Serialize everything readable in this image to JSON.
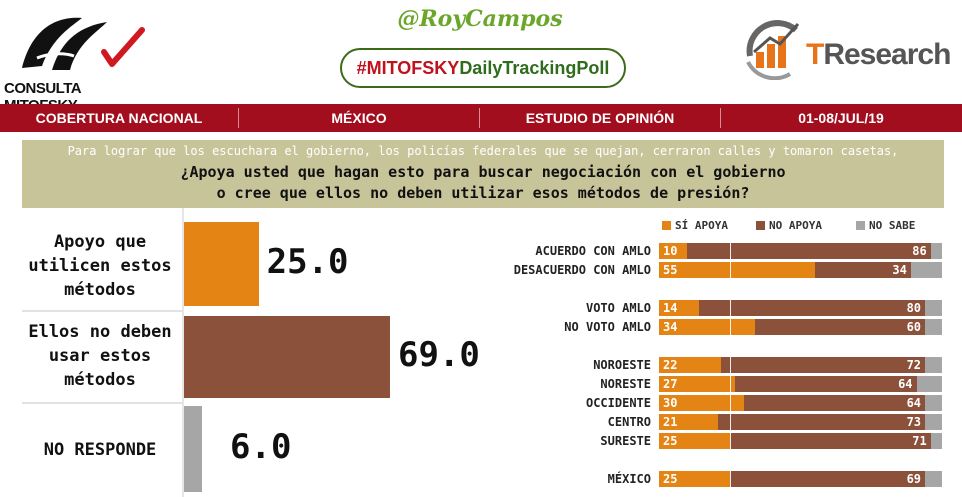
{
  "header": {
    "left_logo_text": "CONSULTA MITOFSKY",
    "handle": "@RoyCampos",
    "hashtag_part1": "#MITOFSKY",
    "hashtag_part2": "DailyTrackingPoll",
    "right_logo_t": "T",
    "right_logo_rest": "Research"
  },
  "band": {
    "items": [
      "COBERTURA NACIONAL",
      "MÉXICO",
      "ESTUDIO DE OPINIÓN",
      "01-08/JUL/19"
    ],
    "color": "#a30e1e"
  },
  "question": {
    "preamble": "Para lograr que los escuchara el gobierno, los policías federales que se quejan, cerraron calles y tomaron casetas,",
    "line1": "¿Apoya usted que hagan esto para buscar negociación con el gobierno",
    "line2": "o cree que ellos no deben utilizar esos métodos de presión?"
  },
  "colors": {
    "support": "#e38414",
    "oppose": "#8b513a",
    "unknown": "#a6a6a6"
  },
  "chart_data": [
    {
      "type": "bar",
      "orientation": "horizontal",
      "categories": [
        "Apoyo que utilicen estos métodos",
        "Ellos no deben usar estos métodos",
        "NO RESPONDE"
      ],
      "values": [
        25.0,
        69.0,
        6.0
      ],
      "value_labels": [
        "25.0",
        "69.0",
        "6.0"
      ],
      "xlim": [
        0,
        100
      ]
    },
    {
      "type": "bar",
      "orientation": "horizontal",
      "stacked": true,
      "categories": [
        "ACUERDO CON AMLO",
        "DESACUERDO CON AMLO",
        "VOTO AMLO",
        "NO VOTO AMLO",
        "NOROESTE",
        "NORESTE",
        "OCCIDENTE",
        "CENTRO",
        "SURESTE",
        "MÉXICO"
      ],
      "group_breaks_after": [
        1,
        3,
        8
      ],
      "series": [
        {
          "name": "SÍ APOYA",
          "values": [
            10,
            55,
            14,
            34,
            22,
            27,
            30,
            21,
            25,
            25
          ]
        },
        {
          "name": "NO APOYA",
          "values": [
            86,
            34,
            80,
            60,
            72,
            64,
            64,
            73,
            71,
            69
          ]
        },
        {
          "name": "NO SABE",
          "values": [
            4,
            11,
            6,
            6,
            6,
            9,
            6,
            6,
            4,
            6
          ]
        }
      ],
      "legend": [
        "SÍ APOYA",
        "NO APOYA",
        "NO SABE"
      ],
      "legend_placement": "top",
      "xlim": [
        0,
        100
      ]
    }
  ]
}
